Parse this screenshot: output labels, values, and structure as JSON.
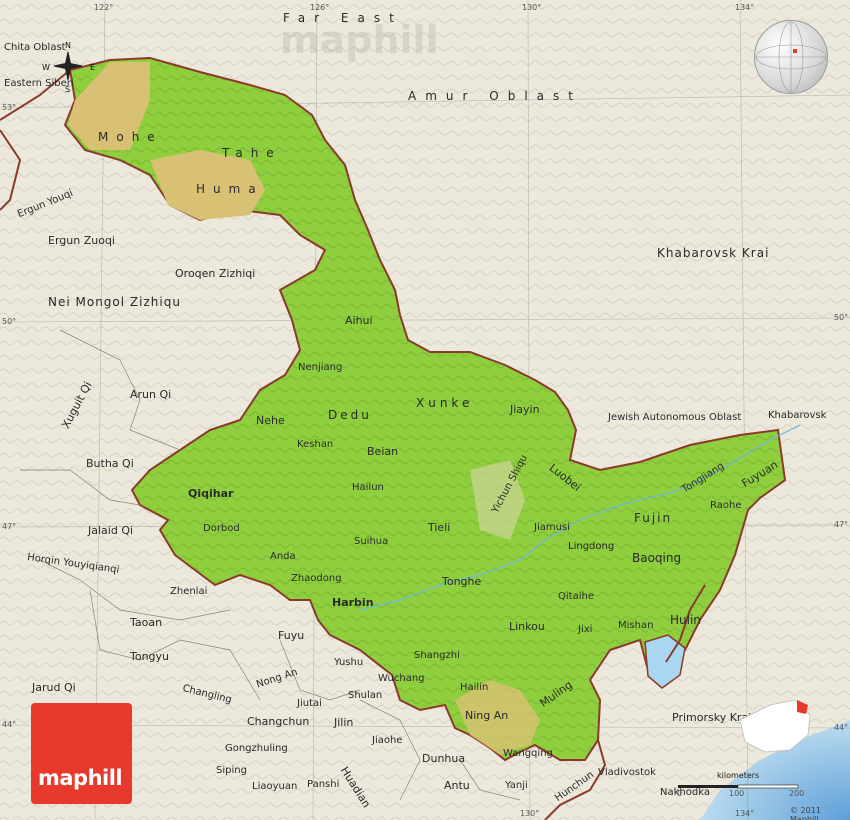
{
  "brand": {
    "logo_text": "maphill",
    "watermark": "maphill",
    "copyright": "© 2011 Maphill"
  },
  "colors": {
    "background": "#ece8dc",
    "province_fill": "#8fcf3e",
    "highland_fill": "#d9c173",
    "border": "#8b3a2a",
    "water": "#a9d7f2",
    "logo": "#e8392d"
  },
  "graticule": {
    "lon_labels": [
      "122°",
      "126°",
      "130°",
      "134°",
      "130°",
      "134°"
    ],
    "lat_labels": [
      "53°",
      "50°",
      "47°",
      "44°",
      "50°",
      "47°",
      "44°"
    ]
  },
  "compass": {
    "n": "N",
    "s": "S",
    "e": "E",
    "w": "W"
  },
  "regions": {
    "far_east": "Far East",
    "amur": "Amur Oblast",
    "khabarovsk_krai": "Khabarovsk Krai",
    "jewish": "Jewish Autonomous Oblast",
    "primorsky": "Primorsky Krai",
    "chita": "Chita Oblast",
    "eastern_siberia": "Eastern Siberi",
    "nei_mongol": "Nei Mongol Zizhiqu"
  },
  "labels": {
    "mohe": "Mohe",
    "tahe": "Tahe",
    "huma": "Huma",
    "ergun_youqi": "Ergun Youqi",
    "ergun_zuoqi": "Ergun Zuoqi",
    "oroqen": "Oroqen Zizhiqi",
    "aihui": "Aihui",
    "nenjiang": "Nenjiang",
    "nehe": "Nehe",
    "dedu": "Dedu",
    "xunke": "Xunke",
    "jiayin": "Jiayin",
    "keshan": "Keshan",
    "beian": "Beian",
    "hailun": "Hailun",
    "yichun": "Yichun Shiqu",
    "luobei": "Luobei",
    "tongjiang": "Tongjiang",
    "fuyuan": "Fuyuan",
    "khabarovsk": "Khabarovsk",
    "xuguit": "Xuguit Qi",
    "arun": "Arun Qi",
    "butha": "Butha Qi",
    "jalaid": "Jalaid Qi",
    "horqin": "Horqin Youyiqianqi",
    "qiqihar": "Qiqihar",
    "dorbod": "Dorbod",
    "anda": "Anda",
    "suihua": "Suihua",
    "tieli": "Tieli",
    "jiamusi": "Jiamusi",
    "fujin": "Fujin",
    "raohe": "Raohe",
    "lingdong": "Lingdong",
    "baoqing": "Baoqing",
    "zhaodong": "Zhaodong",
    "tonghe": "Tonghe",
    "qitaihe": "Qitaihe",
    "zhenlai": "Zhenlai",
    "harbin": "Harbin",
    "linkou": "Linkou",
    "jixi": "Jixi",
    "mishan": "Mishan",
    "hulin": "Hulin",
    "taoan": "Taoan",
    "tongyu": "Tongyu",
    "fuyu": "Fuyu",
    "yushu": "Yushu",
    "shangzhi": "Shangzhi",
    "nong_an": "Nong An",
    "jiutai": "Jiutai",
    "wuchang": "Wuchang",
    "changling": "Changling",
    "jarud": "Jarud Qi",
    "shulan": "Shulan",
    "hailin": "Hailin",
    "muling": "Muling",
    "ning_an": "Ning An",
    "changchun": "Changchun",
    "jilin": "Jilin",
    "jiaohe": "Jiaohe",
    "gongzhuling": "Gongzhuling",
    "dunhua": "Dunhua",
    "wangqing": "Wangqing",
    "siping": "Siping",
    "liaoyuan": "Liaoyuan",
    "panshi": "Panshi",
    "huadian": "Huadian",
    "antu": "Antu",
    "yanji": "Yanji",
    "hunchun": "Hunchun",
    "vladivostok": "Vladivostok",
    "nakhodka": "Nakhodka"
  },
  "scale": {
    "title": "kilometers",
    "ticks": [
      "0",
      "100",
      "200"
    ]
  }
}
